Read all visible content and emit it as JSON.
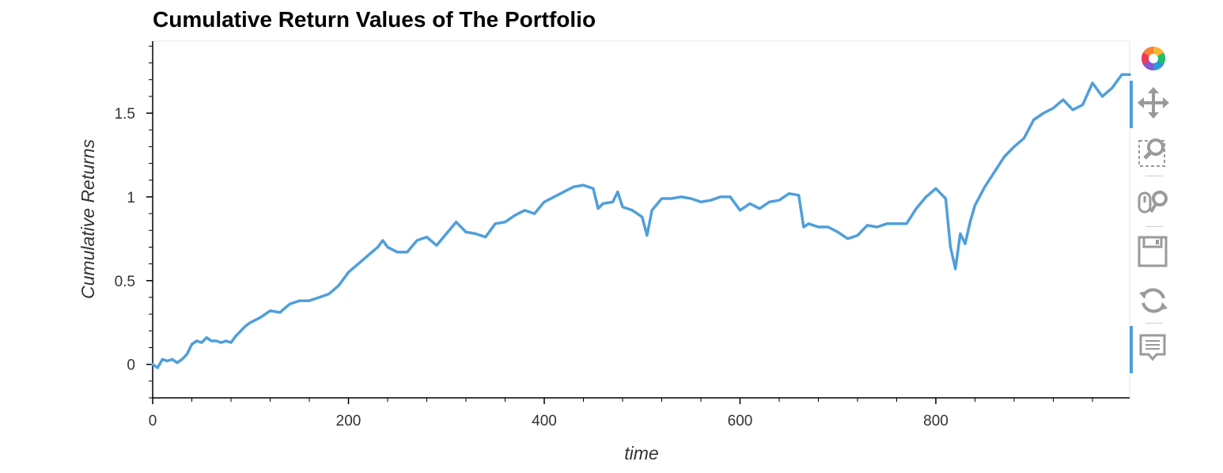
{
  "chart_data": {
    "type": "line",
    "title": "Cumulative Return Values of The Portfolio",
    "xlabel": "time",
    "ylabel": "Cumulative Returns",
    "xlim": [
      0,
      998
    ],
    "ylim": [
      -0.2,
      1.93
    ],
    "xticks": [
      0,
      200,
      400,
      600,
      800
    ],
    "xtick_labels": [
      "0",
      "200",
      "400",
      "600",
      "800"
    ],
    "yticks": [
      0,
      0.5,
      1,
      1.5
    ],
    "ytick_labels": [
      "0",
      "0.5",
      "1",
      "1.5"
    ],
    "grid": false,
    "line_color": "#4f9fdb",
    "series": [
      {
        "x": [
          0,
          5,
          10,
          15,
          20,
          25,
          30,
          35,
          40,
          45,
          50,
          55,
          60,
          65,
          70,
          75,
          80,
          85,
          90,
          95,
          100,
          110,
          120,
          130,
          140,
          150,
          160,
          170,
          180,
          190,
          200,
          210,
          220,
          230,
          235,
          240,
          250,
          260,
          270,
          280,
          290,
          300,
          310,
          320,
          330,
          340,
          350,
          360,
          370,
          380,
          390,
          400,
          410,
          420,
          430,
          440,
          450,
          455,
          460,
          470,
          475,
          480,
          490,
          500,
          505,
          510,
          520,
          530,
          540,
          550,
          560,
          570,
          580,
          590,
          600,
          610,
          620,
          630,
          640,
          650,
          660,
          665,
          670,
          680,
          690,
          700,
          710,
          720,
          730,
          740,
          750,
          760,
          770,
          780,
          790,
          800,
          805,
          810,
          815,
          820,
          825,
          830,
          835,
          840,
          850,
          860,
          870,
          880,
          890,
          900,
          910,
          920,
          930,
          940,
          950,
          960,
          970,
          980,
          990,
          998
        ],
        "y": [
          0.0,
          -0.02,
          0.03,
          0.02,
          0.03,
          0.01,
          0.03,
          0.06,
          0.12,
          0.14,
          0.13,
          0.16,
          0.14,
          0.14,
          0.13,
          0.14,
          0.13,
          0.17,
          0.2,
          0.23,
          0.25,
          0.28,
          0.32,
          0.31,
          0.36,
          0.38,
          0.38,
          0.4,
          0.42,
          0.47,
          0.55,
          0.6,
          0.65,
          0.7,
          0.74,
          0.7,
          0.67,
          0.67,
          0.74,
          0.76,
          0.71,
          0.78,
          0.85,
          0.79,
          0.78,
          0.76,
          0.84,
          0.85,
          0.89,
          0.92,
          0.9,
          0.97,
          1.0,
          1.03,
          1.06,
          1.07,
          1.05,
          0.93,
          0.96,
          0.97,
          1.03,
          0.94,
          0.92,
          0.88,
          0.77,
          0.92,
          0.99,
          0.99,
          1.0,
          0.99,
          0.97,
          0.98,
          1.0,
          1.0,
          0.92,
          0.96,
          0.93,
          0.97,
          0.98,
          1.02,
          1.01,
          0.82,
          0.84,
          0.82,
          0.82,
          0.79,
          0.75,
          0.77,
          0.83,
          0.82,
          0.84,
          0.84,
          0.84,
          0.93,
          1.0,
          1.05,
          1.02,
          0.99,
          0.7,
          0.57,
          0.78,
          0.72,
          0.85,
          0.95,
          1.06,
          1.15,
          1.24,
          1.3,
          1.35,
          1.46,
          1.5,
          1.53,
          1.58,
          1.52,
          1.55,
          1.68,
          1.6,
          1.65,
          1.73,
          1.73
        ]
      }
    ]
  }
}
